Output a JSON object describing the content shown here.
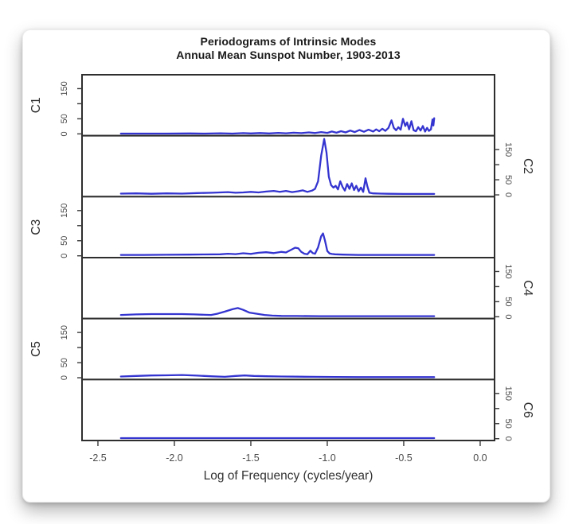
{
  "window": {
    "background": "#ffffff",
    "card_background": "#ffffff"
  },
  "chart_data": {
    "type": "line",
    "title": "Periodograms of Intrinsic Modes",
    "subtitle": "Annual Mean Sunspot Number, 1903-2013",
    "xlabel": "Log of Frequency (cycles/year)",
    "xlim": [
      -2.604,
      0.094
    ],
    "x_ticks": [
      -2.5,
      -2.0,
      -1.5,
      -1.0,
      -0.5,
      0.0
    ],
    "x_tick_labels": [
      "-2.5",
      "-2.0",
      "-1.5",
      "-1.0",
      "-0.5",
      "0.0"
    ],
    "ylim_per_panel": [
      -6,
      196
    ],
    "y_ticks": [
      0,
      50,
      100,
      150
    ],
    "y_tick_labels": [
      "0",
      "50",
      "",
      "150"
    ],
    "grid": "off",
    "legend": "none",
    "line_color": "#3434d0",
    "box_color": "#2e2e2e",
    "tick_color": "#3a3a3a",
    "tick_label_color": "#4a4a4a",
    "panel_label_color": "#2b2b2b",
    "panels": [
      {
        "label": "C1",
        "axis_side": "left",
        "points": [
          [
            -2.35,
            1
          ],
          [
            -2.2,
            1
          ],
          [
            -2.05,
            1
          ],
          [
            -1.9,
            1.5
          ],
          [
            -1.8,
            1
          ],
          [
            -1.7,
            2
          ],
          [
            -1.62,
            1
          ],
          [
            -1.55,
            2.5
          ],
          [
            -1.5,
            1.5
          ],
          [
            -1.44,
            3
          ],
          [
            -1.38,
            1.5
          ],
          [
            -1.32,
            3.5
          ],
          [
            -1.27,
            2
          ],
          [
            -1.22,
            4
          ],
          [
            -1.17,
            2.5
          ],
          [
            -1.12,
            5
          ],
          [
            -1.08,
            3
          ],
          [
            -1.04,
            6
          ],
          [
            -1.0,
            3.5
          ],
          [
            -0.97,
            8
          ],
          [
            -0.94,
            4
          ],
          [
            -0.91,
            9
          ],
          [
            -0.88,
            5
          ],
          [
            -0.85,
            11
          ],
          [
            -0.82,
            6
          ],
          [
            -0.79,
            13
          ],
          [
            -0.76,
            7
          ],
          [
            -0.73,
            14
          ],
          [
            -0.7,
            8
          ],
          [
            -0.68,
            15
          ],
          [
            -0.66,
            9
          ],
          [
            -0.64,
            17
          ],
          [
            -0.62,
            10
          ],
          [
            -0.6,
            20
          ],
          [
            -0.58,
            45
          ],
          [
            -0.565,
            20
          ],
          [
            -0.55,
            12
          ],
          [
            -0.535,
            22
          ],
          [
            -0.52,
            14
          ],
          [
            -0.505,
            50
          ],
          [
            -0.49,
            26
          ],
          [
            -0.478,
            38
          ],
          [
            -0.465,
            15
          ],
          [
            -0.45,
            42
          ],
          [
            -0.435,
            12
          ],
          [
            -0.42,
            9
          ],
          [
            -0.405,
            22
          ],
          [
            -0.39,
            11
          ],
          [
            -0.375,
            26
          ],
          [
            -0.36,
            8
          ],
          [
            -0.347,
            20
          ],
          [
            -0.335,
            10
          ],
          [
            -0.322,
            15
          ],
          [
            -0.312,
            48
          ],
          [
            -0.306,
            28
          ],
          [
            -0.301,
            52
          ]
        ]
      },
      {
        "label": "C2",
        "axis_side": "right",
        "points": [
          [
            -2.35,
            4
          ],
          [
            -2.25,
            5
          ],
          [
            -2.15,
            3.5
          ],
          [
            -2.05,
            5
          ],
          [
            -1.95,
            4
          ],
          [
            -1.85,
            6
          ],
          [
            -1.75,
            7
          ],
          [
            -1.65,
            9
          ],
          [
            -1.6,
            7
          ],
          [
            -1.55,
            8
          ],
          [
            -1.5,
            10
          ],
          [
            -1.45,
            8
          ],
          [
            -1.4,
            11
          ],
          [
            -1.35,
            13
          ],
          [
            -1.31,
            10
          ],
          [
            -1.27,
            13
          ],
          [
            -1.23,
            9
          ],
          [
            -1.19,
            12
          ],
          [
            -1.16,
            15
          ],
          [
            -1.13,
            10
          ],
          [
            -1.1,
            14
          ],
          [
            -1.08,
            20
          ],
          [
            -1.06,
            45
          ],
          [
            -1.04,
            130
          ],
          [
            -1.02,
            185
          ],
          [
            -1.005,
            140
          ],
          [
            -0.99,
            60
          ],
          [
            -0.975,
            32
          ],
          [
            -0.96,
            24
          ],
          [
            -0.945,
            30
          ],
          [
            -0.93,
            18
          ],
          [
            -0.915,
            45
          ],
          [
            -0.9,
            26
          ],
          [
            -0.885,
            14
          ],
          [
            -0.87,
            36
          ],
          [
            -0.855,
            20
          ],
          [
            -0.84,
            38
          ],
          [
            -0.825,
            16
          ],
          [
            -0.81,
            30
          ],
          [
            -0.795,
            12
          ],
          [
            -0.78,
            24
          ],
          [
            -0.765,
            10
          ],
          [
            -0.75,
            55
          ],
          [
            -0.738,
            28
          ],
          [
            -0.725,
            7
          ],
          [
            -0.7,
            5
          ],
          [
            -0.65,
            4
          ],
          [
            -0.6,
            3.5
          ],
          [
            -0.5,
            3
          ],
          [
            -0.4,
            3
          ],
          [
            -0.301,
            3
          ]
        ]
      },
      {
        "label": "C3",
        "axis_side": "left",
        "points": [
          [
            -2.35,
            3
          ],
          [
            -2.2,
            3
          ],
          [
            -2.05,
            3.5
          ],
          [
            -1.9,
            4
          ],
          [
            -1.8,
            4.5
          ],
          [
            -1.7,
            5
          ],
          [
            -1.65,
            7
          ],
          [
            -1.6,
            5.5
          ],
          [
            -1.55,
            8.5
          ],
          [
            -1.5,
            6.5
          ],
          [
            -1.45,
            10
          ],
          [
            -1.4,
            12
          ],
          [
            -1.35,
            9
          ],
          [
            -1.3,
            13
          ],
          [
            -1.27,
            11
          ],
          [
            -1.24,
            19
          ],
          [
            -1.21,
            27
          ],
          [
            -1.19,
            25
          ],
          [
            -1.17,
            13
          ],
          [
            -1.15,
            7
          ],
          [
            -1.13,
            5
          ],
          [
            -1.11,
            17
          ],
          [
            -1.095,
            9
          ],
          [
            -1.08,
            7
          ],
          [
            -1.06,
            28
          ],
          [
            -1.04,
            65
          ],
          [
            -1.028,
            74
          ],
          [
            -1.015,
            50
          ],
          [
            -1.0,
            16
          ],
          [
            -0.985,
            8
          ],
          [
            -0.97,
            6
          ],
          [
            -0.95,
            5
          ],
          [
            -0.9,
            4
          ],
          [
            -0.8,
            3
          ],
          [
            -0.6,
            3
          ],
          [
            -0.45,
            3
          ],
          [
            -0.301,
            3
          ]
        ]
      },
      {
        "label": "C4",
        "axis_side": "right",
        "points": [
          [
            -2.35,
            6
          ],
          [
            -2.25,
            8
          ],
          [
            -2.15,
            9
          ],
          [
            -2.05,
            9
          ],
          [
            -1.95,
            9
          ],
          [
            -1.87,
            8
          ],
          [
            -1.8,
            6.5
          ],
          [
            -1.76,
            6
          ],
          [
            -1.72,
            10
          ],
          [
            -1.67,
            17
          ],
          [
            -1.62,
            25
          ],
          [
            -1.585,
            29
          ],
          [
            -1.55,
            23
          ],
          [
            -1.51,
            14
          ],
          [
            -1.46,
            10
          ],
          [
            -1.41,
            6
          ],
          [
            -1.36,
            4
          ],
          [
            -1.3,
            3
          ],
          [
            -1.2,
            2.5
          ],
          [
            -1.05,
            2
          ],
          [
            -0.9,
            2
          ],
          [
            -0.7,
            2
          ],
          [
            -0.5,
            2
          ],
          [
            -0.301,
            2
          ]
        ]
      },
      {
        "label": "C5",
        "axis_side": "left",
        "points": [
          [
            -2.35,
            4
          ],
          [
            -2.25,
            6
          ],
          [
            -2.15,
            7.5
          ],
          [
            -2.05,
            8
          ],
          [
            -1.95,
            9
          ],
          [
            -1.85,
            7
          ],
          [
            -1.75,
            4.5
          ],
          [
            -1.67,
            3
          ],
          [
            -1.6,
            6
          ],
          [
            -1.54,
            7.5
          ],
          [
            -1.48,
            6
          ],
          [
            -1.4,
            5
          ],
          [
            -1.3,
            4
          ],
          [
            -1.2,
            3.5
          ],
          [
            -1.1,
            3
          ],
          [
            -0.95,
            2.5
          ],
          [
            -0.8,
            2
          ],
          [
            -0.6,
            2
          ],
          [
            -0.45,
            2
          ],
          [
            -0.301,
            2
          ]
        ]
      },
      {
        "label": "C6",
        "axis_side": "right",
        "points": [
          [
            -2.35,
            2
          ],
          [
            -2.1,
            2
          ],
          [
            -1.8,
            2
          ],
          [
            -1.5,
            2
          ],
          [
            -1.2,
            2
          ],
          [
            -0.9,
            2
          ],
          [
            -0.6,
            2
          ],
          [
            -0.301,
            2
          ]
        ]
      }
    ]
  }
}
